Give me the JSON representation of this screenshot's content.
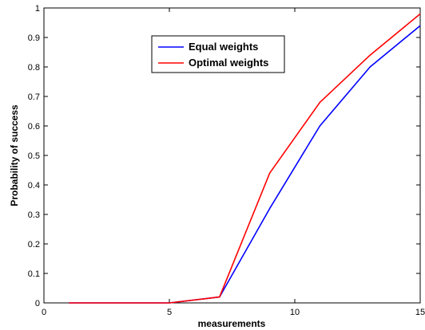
{
  "chart_data": {
    "type": "line",
    "xlabel": "measurements",
    "ylabel": "Probability of success",
    "xlim": [
      0,
      15
    ],
    "ylim": [
      0,
      1
    ],
    "xticks": [
      0,
      5,
      10,
      15
    ],
    "yticks": [
      0,
      0.1,
      0.2,
      0.3,
      0.4,
      0.5,
      0.6,
      0.7,
      0.8,
      0.9,
      1
    ],
    "xtick_labels": [
      "0",
      "5",
      "10",
      "15"
    ],
    "ytick_labels": [
      "0",
      "0.1",
      "0.2",
      "0.3",
      "0.4",
      "0.5",
      "0.6",
      "0.7",
      "0.8",
      "0.9",
      "1"
    ],
    "grid": false,
    "legend_position": "top-center",
    "x": [
      1,
      3,
      5,
      7,
      9,
      11,
      13,
      15
    ],
    "series": [
      {
        "name": "Equal weights",
        "color": "#0000ff",
        "values": [
          0,
          0,
          0,
          0.02,
          0.32,
          0.6,
          0.8,
          0.94
        ]
      },
      {
        "name": "Optimal weights",
        "color": "#ff0000",
        "values": [
          0,
          0,
          0,
          0.02,
          0.44,
          0.68,
          0.84,
          0.98
        ]
      }
    ]
  }
}
